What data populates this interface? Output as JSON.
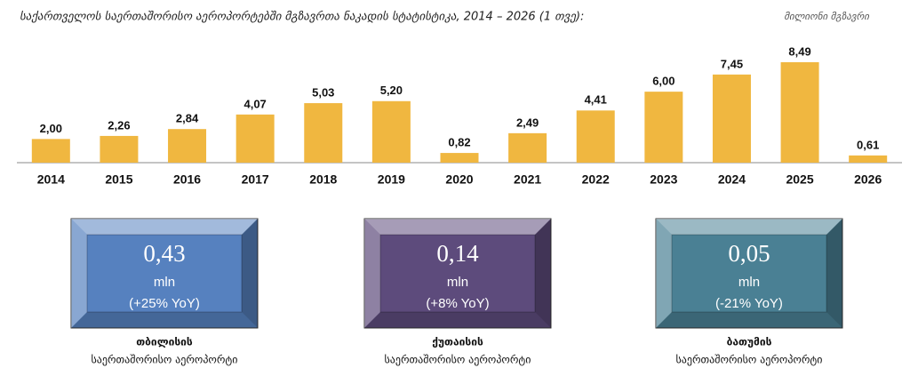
{
  "chart_data": {
    "type": "bar",
    "title": "საქართველოს საერთაშორისო აეროპორტებში მგზავრთა ნაკადის სტატისტიკა, 2014 – 2026 (1 თვე):",
    "unit_label": "მილიონი მგზავრი",
    "categories": [
      "2014",
      "2015",
      "2016",
      "2017",
      "2018",
      "2019",
      "2020",
      "2021",
      "2022",
      "2023",
      "2024",
      "2025",
      "2026"
    ],
    "values": [
      2.0,
      2.26,
      2.84,
      4.07,
      5.03,
      5.2,
      0.82,
      2.49,
      4.41,
      6.0,
      7.45,
      8.49,
      0.61
    ],
    "value_labels": [
      "2,00",
      "2,26",
      "2,84",
      "4,07",
      "5,03",
      "5,20",
      "0,82",
      "2,49",
      "4,41",
      "6,00",
      "7,45",
      "8,49",
      "0,61"
    ],
    "color": "#f0b740"
  },
  "airports": [
    {
      "value": "0,43",
      "unit": "mln",
      "change": "(+25% YoY)",
      "name": "თბილისის",
      "subtitle": "საერთაშორისო აეროპორტი",
      "color": "#5681bf"
    },
    {
      "value": "0,14",
      "unit": "mln",
      "change": "(+8% YoY)",
      "name": "ქუთაისის",
      "subtitle": "საერთაშორისო აეროპორტი",
      "color": "#5d4b7c"
    },
    {
      "value": "0,05",
      "unit": "mln",
      "change": "(-21% YoY)",
      "name": "ბათუმის",
      "subtitle": "საერთაშორისო აეროპორტი",
      "color": "#4a8094"
    }
  ]
}
